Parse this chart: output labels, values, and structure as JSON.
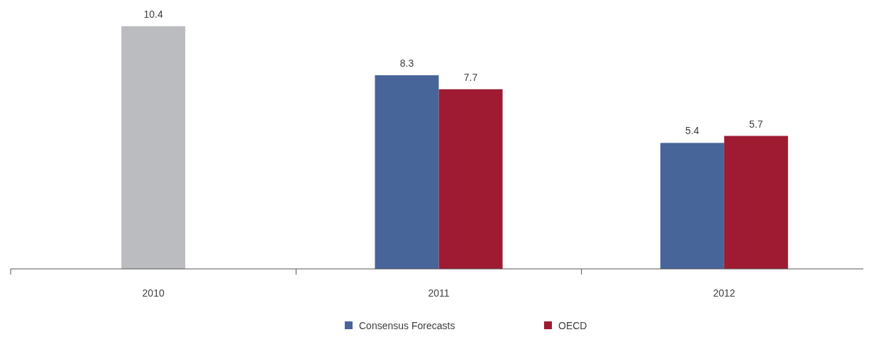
{
  "chart_data": {
    "type": "bar",
    "categories": [
      "2010",
      "2011",
      "2012"
    ],
    "series": [
      {
        "color": "#bbbcc0",
        "values": [
          10.4,
          null,
          null
        ]
      },
      {
        "name": "Consensus Forecasts",
        "color": "#48659a",
        "values": [
          null,
          8.3,
          5.4
        ]
      },
      {
        "name": "OECD",
        "color": "#9e1b32",
        "values": [
          null,
          7.7,
          5.7
        ]
      }
    ],
    "data_labels": true,
    "legend": "bottom"
  }
}
